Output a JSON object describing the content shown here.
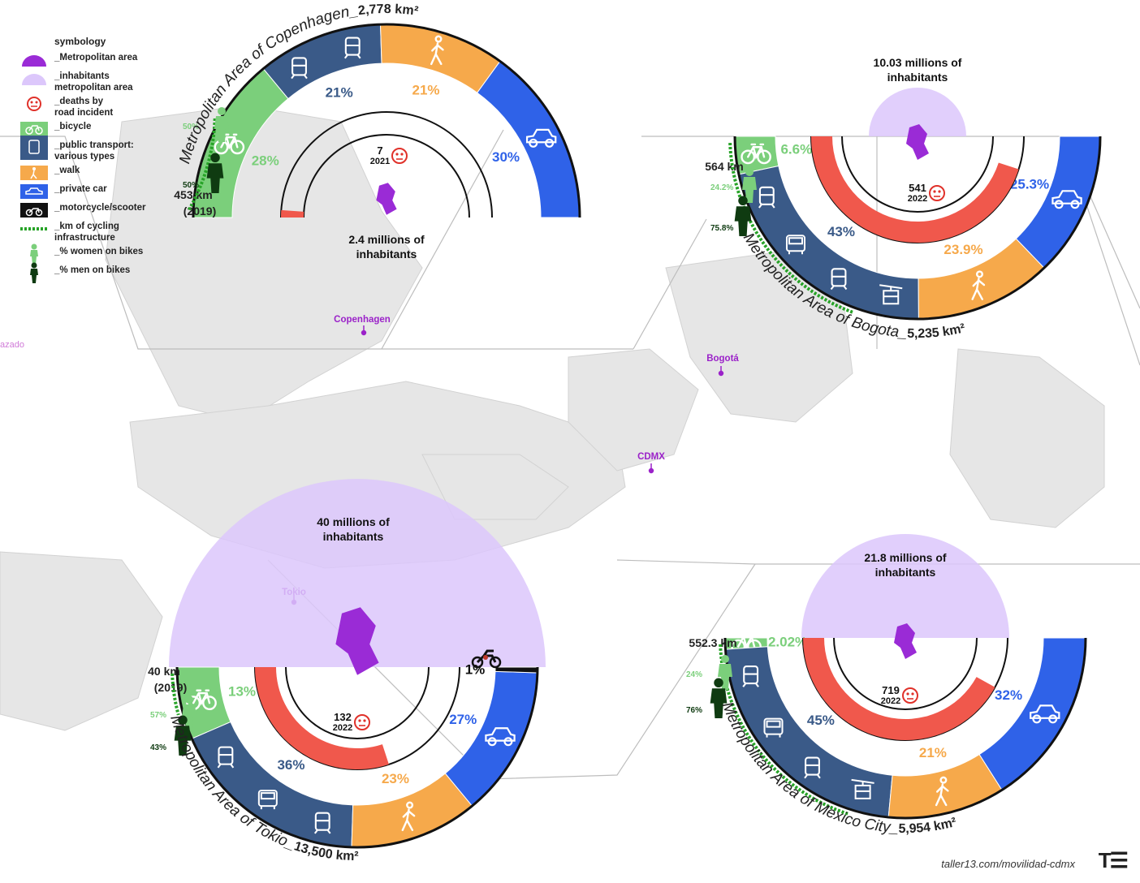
{
  "legend": {
    "title": "symbology",
    "items": [
      {
        "key": "metro",
        "text": "_Metropolitan area"
      },
      {
        "key": "inhab",
        "text": "_inhabitants\nmetropolitan area"
      },
      {
        "key": "deaths",
        "text": "_deaths by\nroad incident"
      },
      {
        "key": "bicycle",
        "text": "_bicycle"
      },
      {
        "key": "public",
        "text": "_public transport:\nvarious types"
      },
      {
        "key": "walk",
        "text": "_walk"
      },
      {
        "key": "car",
        "text": "_private car"
      },
      {
        "key": "moto",
        "text": "_motorcycle/scooter"
      },
      {
        "key": "cycling",
        "text": "_km of cycling\ninfrastructure"
      },
      {
        "key": "women",
        "text": "_% women on bikes"
      },
      {
        "key": "men",
        "text": "_% men on bikes"
      }
    ]
  },
  "colors": {
    "bicycle": "#7bcf7b",
    "public": "#3a5a88",
    "walk": "#f6a94b",
    "car": "#2f62e8",
    "moto": "#111111",
    "metro": "#9a2bd6",
    "inhabitants": "#dcc7fb",
    "deaths": "#f0584c",
    "cycling": "#27a327",
    "women": "#7bcf7b",
    "men": "#0f3b11",
    "label": "#9b22c9"
  },
  "cities": {
    "copenhagen": {
      "name": "Copenhagen",
      "title": "Metropolitan Area of Copenhagen_",
      "area": "2,778 km²",
      "inhabitants": "2.4 millions of inhabitants",
      "deaths": "7",
      "deaths_year": "2021",
      "cycling_km": "453 km",
      "cycling_year": "(2019)",
      "women": "50%",
      "men": "50%"
    },
    "bogota": {
      "name": "Bogotá",
      "title": "Metropolitan Area of Bogota_",
      "area": "5,235 km²",
      "inhabitants": "10.03 millions of inhabitants",
      "deaths": "541",
      "deaths_year": "2022",
      "cycling_km": "564 km",
      "cycling_year": "",
      "women": "24.2%",
      "men": "75.8%"
    },
    "tokio": {
      "name": "Tokio",
      "title": "Metropolitan Area of Tokio_",
      "area": "13,500 km²",
      "inhabitants": "40 millions of inhabitants",
      "deaths": "132",
      "deaths_year": "2022",
      "cycling_km": "40 km",
      "cycling_year": "(2019)",
      "women": "57%",
      "men": "43%"
    },
    "cdmx": {
      "name": "CDMX",
      "title": "Metropolitan Area of Mexico City_",
      "area": "5,954 km²",
      "inhabitants": "21.8 millions of inhabitants",
      "deaths": "719",
      "deaths_year": "2022",
      "cycling_km": "552.3 km",
      "cycling_year": "",
      "women": "24%",
      "men": "76%"
    }
  },
  "chart_data": [
    {
      "type": "pie",
      "city": "Copenhagen",
      "categories": [
        "bicycle",
        "public transport",
        "walk",
        "private car"
      ],
      "values": [
        28,
        21,
        21,
        30
      ],
      "labels": [
        "28%",
        "21%",
        "21%",
        "30%"
      ]
    },
    {
      "type": "pie",
      "city": "Bogota",
      "categories": [
        "bicycle",
        "public transport",
        "walk",
        "private car"
      ],
      "values": [
        6.6,
        43,
        23.9,
        25.3
      ],
      "labels": [
        "6.6%",
        "43%",
        "23.9%",
        "25.3%"
      ]
    },
    {
      "type": "pie",
      "city": "Tokio",
      "categories": [
        "bicycle",
        "public transport",
        "walk",
        "private car",
        "motorcycle/scooter"
      ],
      "values": [
        13,
        36,
        23,
        27,
        1
      ],
      "labels": [
        "13%",
        "36%",
        "23%",
        "27%",
        "1%"
      ]
    },
    {
      "type": "pie",
      "city": "Mexico City",
      "categories": [
        "bicycle",
        "public transport",
        "walk",
        "private car"
      ],
      "values": [
        2.02,
        45,
        21,
        32
      ],
      "labels": [
        "2.02%",
        "45%",
        "21%",
        "32%"
      ]
    }
  ],
  "map_labels": {
    "copenhagen": "Copenhagen",
    "bogota": "Bogotá",
    "cdmx": "CDMX",
    "tokio": "Tokio",
    "stray": "azado"
  },
  "footer": {
    "url": "taller13.com/movilidad-cdmx",
    "logo": "T☰"
  }
}
